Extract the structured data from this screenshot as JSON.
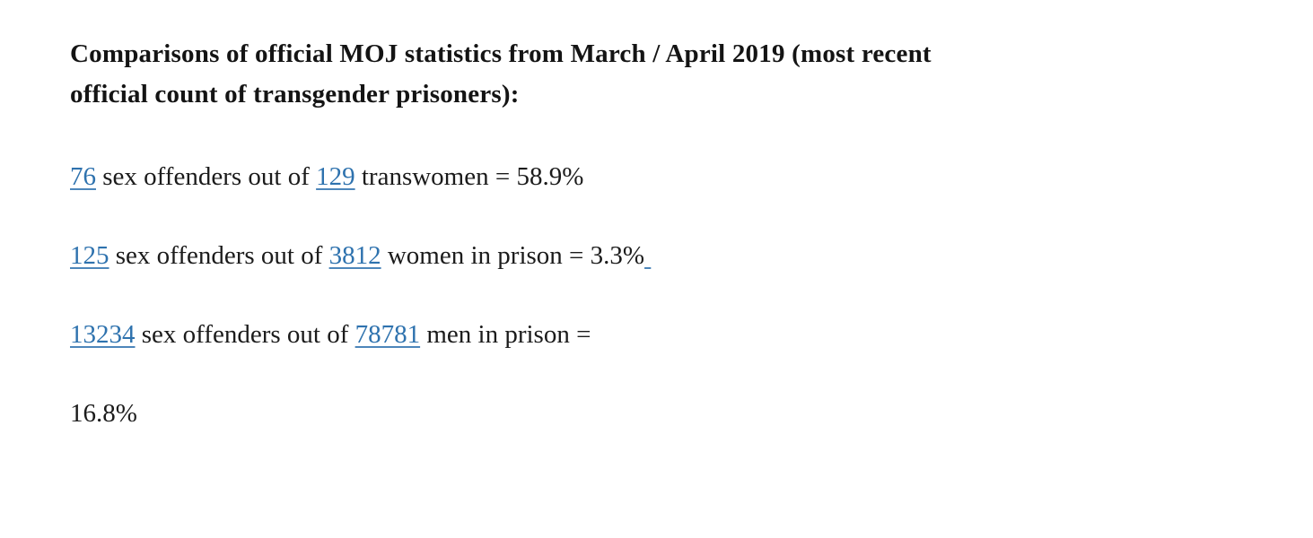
{
  "page": {
    "background": "#ffffff",
    "text_color": "#1b1b1b",
    "link_color": "#2e72ae"
  },
  "document": {
    "heading_line1": "Comparisons of official MOJ statistics from March / April 2019 (most recent",
    "heading_line2": "official count of transgender prisoners):",
    "stats": [
      {
        "segments": [
          {
            "text": "76",
            "link": true
          },
          {
            "text": " sex offenders out of ",
            "link": false
          },
          {
            "text": "129",
            "link": true
          },
          {
            "text": " transwomen = 58.9%",
            "link": false
          }
        ]
      },
      {
        "segments": [
          {
            "text": "125",
            "link": true
          },
          {
            "text": " sex offenders out of ",
            "link": false
          },
          {
            "text": "3812",
            "link": true
          },
          {
            "text": " women in prison = 3.3%",
            "link": false
          },
          {
            "text": " ",
            "link": true
          }
        ]
      },
      {
        "segments": [
          {
            "text": "13234",
            "link": true
          },
          {
            "text": " sex offenders out of ",
            "link": false
          },
          {
            "text": "78781",
            "link": true
          },
          {
            "text": " men in prison =",
            "link": false
          }
        ]
      },
      {
        "segments": [
          {
            "text": "16.8%",
            "link": false
          }
        ]
      }
    ]
  }
}
